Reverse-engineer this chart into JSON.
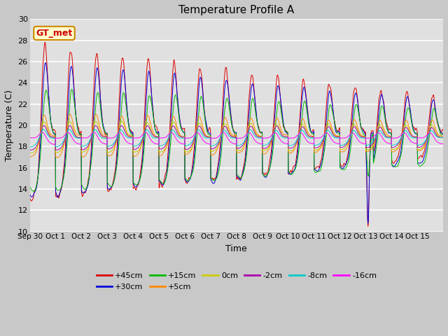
{
  "title": "Temperature Profile A",
  "xlabel": "Time",
  "ylabel": "Temperature (C)",
  "ylim": [
    10,
    30
  ],
  "xlim": [
    0,
    16
  ],
  "xtick_labels": [
    "Sep 30",
    "Oct 1",
    "Oct 2",
    "Oct 3",
    "Oct 4",
    "Oct 5",
    "Oct 6",
    "Oct 7",
    "Oct 8",
    "Oct 9",
    "Oct 10",
    "Oct 11",
    "Oct 12",
    "Oct 13",
    "Oct 14",
    "Oct 15"
  ],
  "ytick_labels": [
    "10",
    "12",
    "14",
    "16",
    "18",
    "20",
    "22",
    "24",
    "26",
    "28",
    "30"
  ],
  "yticks": [
    10,
    12,
    14,
    16,
    18,
    20,
    22,
    24,
    26,
    28,
    30
  ],
  "series": [
    {
      "label": "+45cm",
      "color": "#dd0000"
    },
    {
      "label": "+30cm",
      "color": "#0000dd"
    },
    {
      "label": "+15cm",
      "color": "#00bb00"
    },
    {
      "label": "+5cm",
      "color": "#ff8800"
    },
    {
      "label": "0cm",
      "color": "#cccc00"
    },
    {
      "label": "-2cm",
      "color": "#aa00aa"
    },
    {
      "label": "-8cm",
      "color": "#00cccc"
    },
    {
      "label": "-16cm",
      "color": "#ff00ff"
    }
  ],
  "annotation_text": "GT_met",
  "annotation_color": "#cc0000",
  "annotation_bg": "#ffffcc",
  "annotation_border": "#cc8800",
  "fig_bg": "#c8c8c8",
  "plot_bg": "#e0e0e0",
  "grid_color": "#ffffff",
  "title_fontsize": 11,
  "figwidth": 6.4,
  "figheight": 4.8,
  "dpi": 100
}
